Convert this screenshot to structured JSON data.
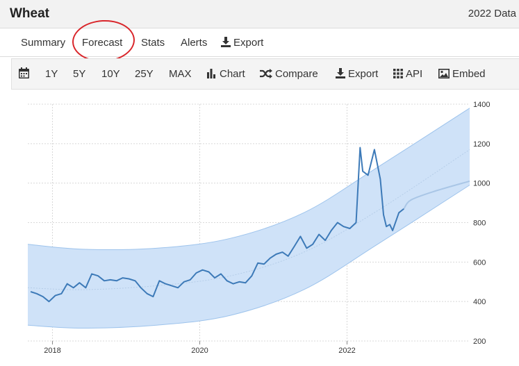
{
  "header": {
    "title": "Wheat",
    "year_data": "2022 Data"
  },
  "tabs": [
    {
      "label": "Summary",
      "icon": ""
    },
    {
      "label": "Forecast",
      "icon": "",
      "highlighted": true
    },
    {
      "label": "Stats",
      "icon": ""
    },
    {
      "label": "Alerts",
      "icon": ""
    },
    {
      "label": "Export",
      "icon": "download-icon"
    }
  ],
  "annotation": {
    "color": "#d9262b"
  },
  "toolbar": {
    "calendar_icon": "calendar-icon",
    "ranges": [
      "1Y",
      "5Y",
      "10Y",
      "25Y",
      "MAX"
    ],
    "chart": "Chart",
    "compare": "Compare",
    "export": "Export",
    "api": "API",
    "embed": "Embed"
  },
  "chart_data": {
    "type": "line",
    "title": "",
    "xlabel": "",
    "ylabel": "",
    "x_ticks": [
      "2018",
      "2020",
      "2022"
    ],
    "y_ticks": [
      "200",
      "400",
      "600",
      "800",
      "1000",
      "1200",
      "1400"
    ],
    "ylim": [
      200,
      1400
    ],
    "xlim": [
      "2017-09",
      "2023-09"
    ],
    "y_axis_side": "right",
    "grid": true,
    "colors": {
      "line": "#3d7ab8",
      "band": "#cfe2f8",
      "band_edge": "#9dc3ec",
      "forecast": "#a9c6e6",
      "trend": "#b5cde8"
    },
    "series": [
      {
        "values": [
          [
            "2017-09-15",
            450
          ],
          [
            "2017-10-15",
            440
          ],
          [
            "2017-11-15",
            425
          ],
          [
            "2017-12-15",
            400
          ],
          [
            "2018-01-15",
            430
          ],
          [
            "2018-02-15",
            440
          ],
          [
            "2018-03-15",
            490
          ],
          [
            "2018-04-15",
            470
          ],
          [
            "2018-05-15",
            495
          ],
          [
            "2018-06-15",
            470
          ],
          [
            "2018-07-15",
            540
          ],
          [
            "2018-08-15",
            530
          ],
          [
            "2018-09-15",
            505
          ],
          [
            "2018-10-15",
            510
          ],
          [
            "2018-11-15",
            505
          ],
          [
            "2018-12-15",
            520
          ],
          [
            "2019-01-15",
            515
          ],
          [
            "2019-02-15",
            505
          ],
          [
            "2019-03-15",
            470
          ],
          [
            "2019-04-15",
            440
          ],
          [
            "2019-05-15",
            425
          ],
          [
            "2019-06-15",
            505
          ],
          [
            "2019-07-15",
            490
          ],
          [
            "2019-08-15",
            480
          ],
          [
            "2019-09-15",
            470
          ],
          [
            "2019-10-15",
            500
          ],
          [
            "2019-11-15",
            510
          ],
          [
            "2019-12-15",
            545
          ],
          [
            "2020-01-15",
            560
          ],
          [
            "2020-02-15",
            550
          ],
          [
            "2020-03-15",
            520
          ],
          [
            "2020-04-15",
            540
          ],
          [
            "2020-05-15",
            505
          ],
          [
            "2020-06-15",
            490
          ],
          [
            "2020-07-15",
            500
          ],
          [
            "2020-08-15",
            495
          ],
          [
            "2020-09-15",
            530
          ],
          [
            "2020-10-15",
            595
          ],
          [
            "2020-11-15",
            590
          ],
          [
            "2020-12-15",
            620
          ],
          [
            "2021-01-15",
            640
          ],
          [
            "2021-02-15",
            650
          ],
          [
            "2021-03-15",
            630
          ],
          [
            "2021-04-15",
            680
          ],
          [
            "2021-05-15",
            730
          ],
          [
            "2021-06-15",
            670
          ],
          [
            "2021-07-15",
            690
          ],
          [
            "2021-08-15",
            740
          ],
          [
            "2021-09-15",
            710
          ],
          [
            "2021-10-15",
            760
          ],
          [
            "2021-11-15",
            800
          ],
          [
            "2021-12-15",
            780
          ],
          [
            "2022-01-15",
            770
          ],
          [
            "2022-02-15",
            800
          ],
          [
            "2022-03-07",
            1180
          ],
          [
            "2022-03-20",
            1060
          ],
          [
            "2022-04-15",
            1040
          ],
          [
            "2022-05-17",
            1170
          ],
          [
            "2022-06-15",
            1020
          ],
          [
            "2022-07-01",
            840
          ],
          [
            "2022-07-15",
            780
          ],
          [
            "2022-08-01",
            790
          ],
          [
            "2022-08-15",
            760
          ],
          [
            "2022-09-15",
            850
          ],
          [
            "2022-10-10",
            870
          ]
        ]
      }
    ],
    "forecast": [
      [
        "2022-10-10",
        870
      ],
      [
        "2022-11-15",
        915
      ],
      [
        "2023-03-15",
        960
      ],
      [
        "2023-09-01",
        1010
      ]
    ],
    "trend": [
      [
        "2017-09-01",
        470
      ],
      [
        "2018-06-01",
        460
      ],
      [
        "2019-06-01",
        480
      ],
      [
        "2020-06-01",
        530
      ],
      [
        "2021-06-01",
        650
      ],
      [
        "2022-06-01",
        860
      ],
      [
        "2023-09-01",
        1170
      ]
    ],
    "band_upper": [
      [
        "2017-09-01",
        690
      ],
      [
        "2018-06-01",
        665
      ],
      [
        "2019-06-01",
        670
      ],
      [
        "2020-06-01",
        720
      ],
      [
        "2021-06-01",
        850
      ],
      [
        "2022-06-01",
        1080
      ],
      [
        "2023-09-01",
        1380
      ]
    ],
    "band_lower": [
      [
        "2017-09-01",
        280
      ],
      [
        "2018-06-01",
        265
      ],
      [
        "2019-06-01",
        280
      ],
      [
        "2020-06-01",
        330
      ],
      [
        "2021-06-01",
        460
      ],
      [
        "2022-06-01",
        690
      ],
      [
        "2023-09-01",
        990
      ]
    ]
  }
}
